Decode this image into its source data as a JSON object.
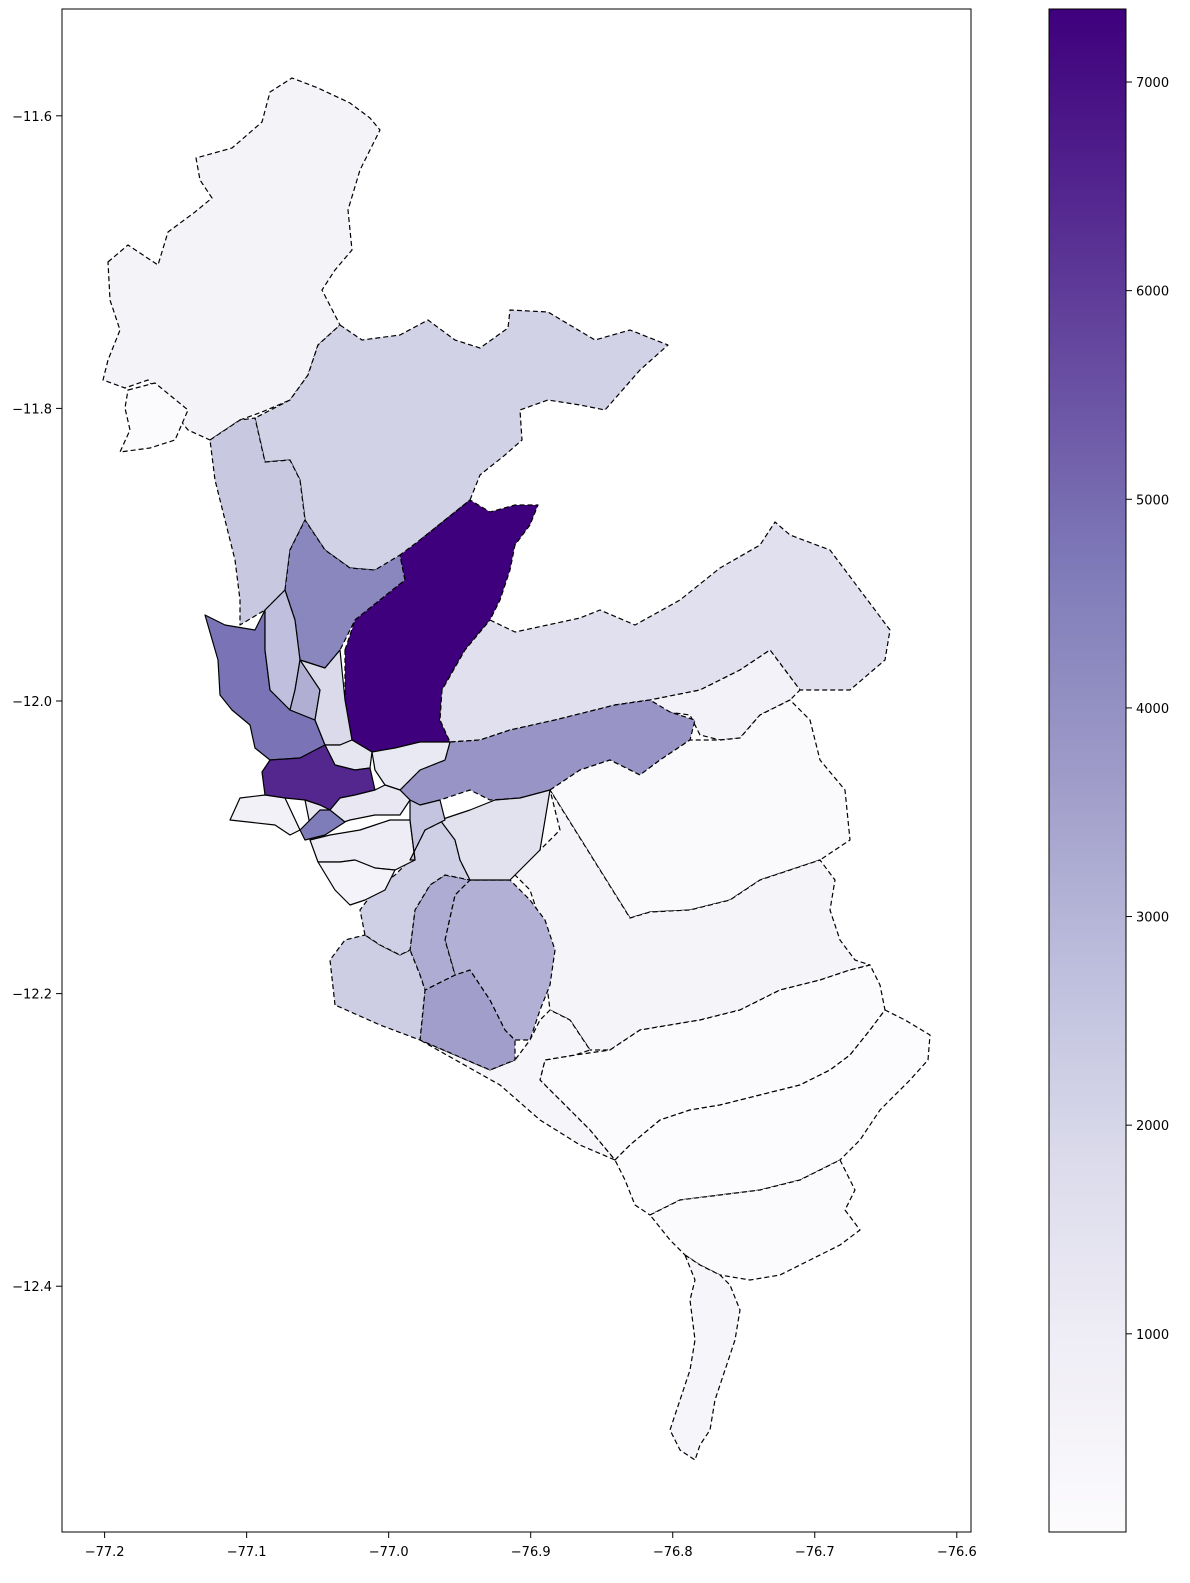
{
  "map": {
    "type": "choropleth",
    "colormap": "Purples",
    "x_axis": {
      "range": [
        -77.23,
        -76.59
      ],
      "ticks": [
        -77.2,
        -77.1,
        -77.0,
        -76.9,
        -76.8,
        -76.7,
        -76.6
      ],
      "tick_labels": [
        "−77.2",
        "−77.1",
        "−77.0",
        "−76.9",
        "−76.8",
        "−76.7",
        "−76.6"
      ]
    },
    "y_axis": {
      "range": [
        -12.568,
        -11.527
      ],
      "ticks": [
        -11.6,
        -11.8,
        -12.0,
        -12.2,
        -12.4
      ],
      "tick_labels": [
        "−11.6",
        "−11.8",
        "−12.0",
        "−12.2",
        "−12.4"
      ]
    },
    "colorbar": {
      "range": [
        50,
        7350
      ],
      "ticks": [
        1000,
        2000,
        3000,
        4000,
        5000,
        6000,
        7000
      ],
      "tick_labels": [
        "1000",
        "2000",
        "3000",
        "4000",
        "5000",
        "6000",
        "7000"
      ],
      "color_stops": [
        "#fcfbfd",
        "#efedf5",
        "#dadaeb",
        "#bcbddc",
        "#9e9ac8",
        "#807dba",
        "#6a51a3",
        "#54278f",
        "#3f007d"
      ]
    }
  }
}
